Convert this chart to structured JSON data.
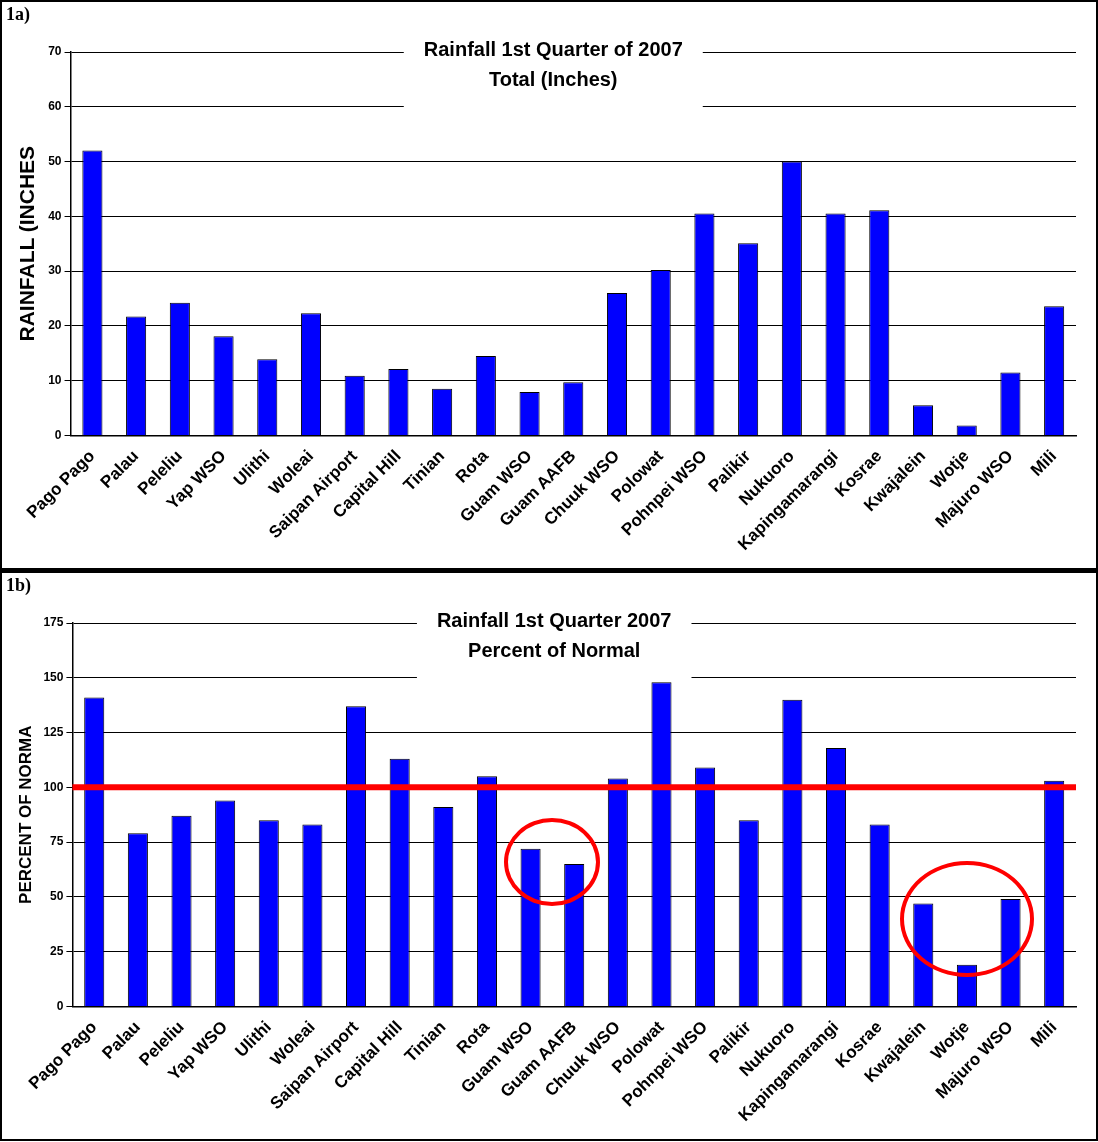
{
  "chart_data": [
    {
      "type": "bar",
      "title": "Rainfall 1st Quarter of 2007",
      "subtitle": "Total (Inches)",
      "ylabel": "RAINFALL (INCHES",
      "annotations": [
        "1a)"
      ],
      "categories": [
        "Pago Pago",
        "Palau",
        "Peleliu",
        "Yap WSO",
        "Ulithi",
        "Woleai",
        "Saipan Airport",
        "Capital Hill",
        "Tinian",
        "Rota",
        "Guam WSO",
        "Guam AAFB",
        "Chuuk WSO",
        "Polowat",
        "Pohnpei WSO",
        "Palikir",
        "Nukuoro",
        "Kapingamarangi",
        "Kosrae",
        "Kwajalein",
        "Wotje",
        "Majuro WSO",
        "Mili"
      ],
      "values": [
        52,
        21.7,
        24.2,
        18.1,
        13.9,
        22.3,
        10.9,
        12.1,
        8.5,
        14.5,
        7.9,
        9.7,
        26,
        30.2,
        40.5,
        35.1,
        50,
        40.5,
        41.1,
        5.5,
        1.8,
        11.5,
        23.6
      ],
      "color": "#0000ff",
      "ylim": [
        0,
        70
      ],
      "yticks": [
        0,
        10,
        20,
        30,
        40,
        50,
        60,
        70
      ],
      "grid": "y",
      "legend": false
    },
    {
      "type": "bar",
      "title": "Rainfall 1st Quarter 2007",
      "subtitle": "Percent of Normal",
      "ylabel": "PERCENT OF NORMA",
      "annotations": [
        "1b)"
      ],
      "categories": [
        "Pago Pago",
        "Palau",
        "Peleliu",
        "Yap WSO",
        "Ulithi",
        "Woleai",
        "Saipan Airport",
        "Capital Hill",
        "Tinian",
        "Rota",
        "Guam WSO",
        "Guam AAFB",
        "Chuuk WSO",
        "Polowat",
        "Pohnpei WSO",
        "Palikir",
        "Nukuoro",
        "Kapingamarangi",
        "Kosrae",
        "Kwajalein",
        "Wotje",
        "Majuro WSO",
        "Mili"
      ],
      "values": [
        141,
        79,
        87,
        94,
        85,
        83,
        137,
        113,
        91,
        105,
        72,
        65,
        104,
        148,
        109,
        85,
        140,
        118,
        83,
        47,
        19,
        49,
        103
      ],
      "color": "#0000ff",
      "ylim": [
        0,
        175
      ],
      "yticks": [
        0,
        25,
        50,
        75,
        100,
        125,
        150,
        175
      ],
      "grid": "y",
      "legend": false,
      "ref_lines": [
        {
          "axis": "y",
          "value": 100,
          "color": "#ff0000"
        }
      ]
    }
  ]
}
